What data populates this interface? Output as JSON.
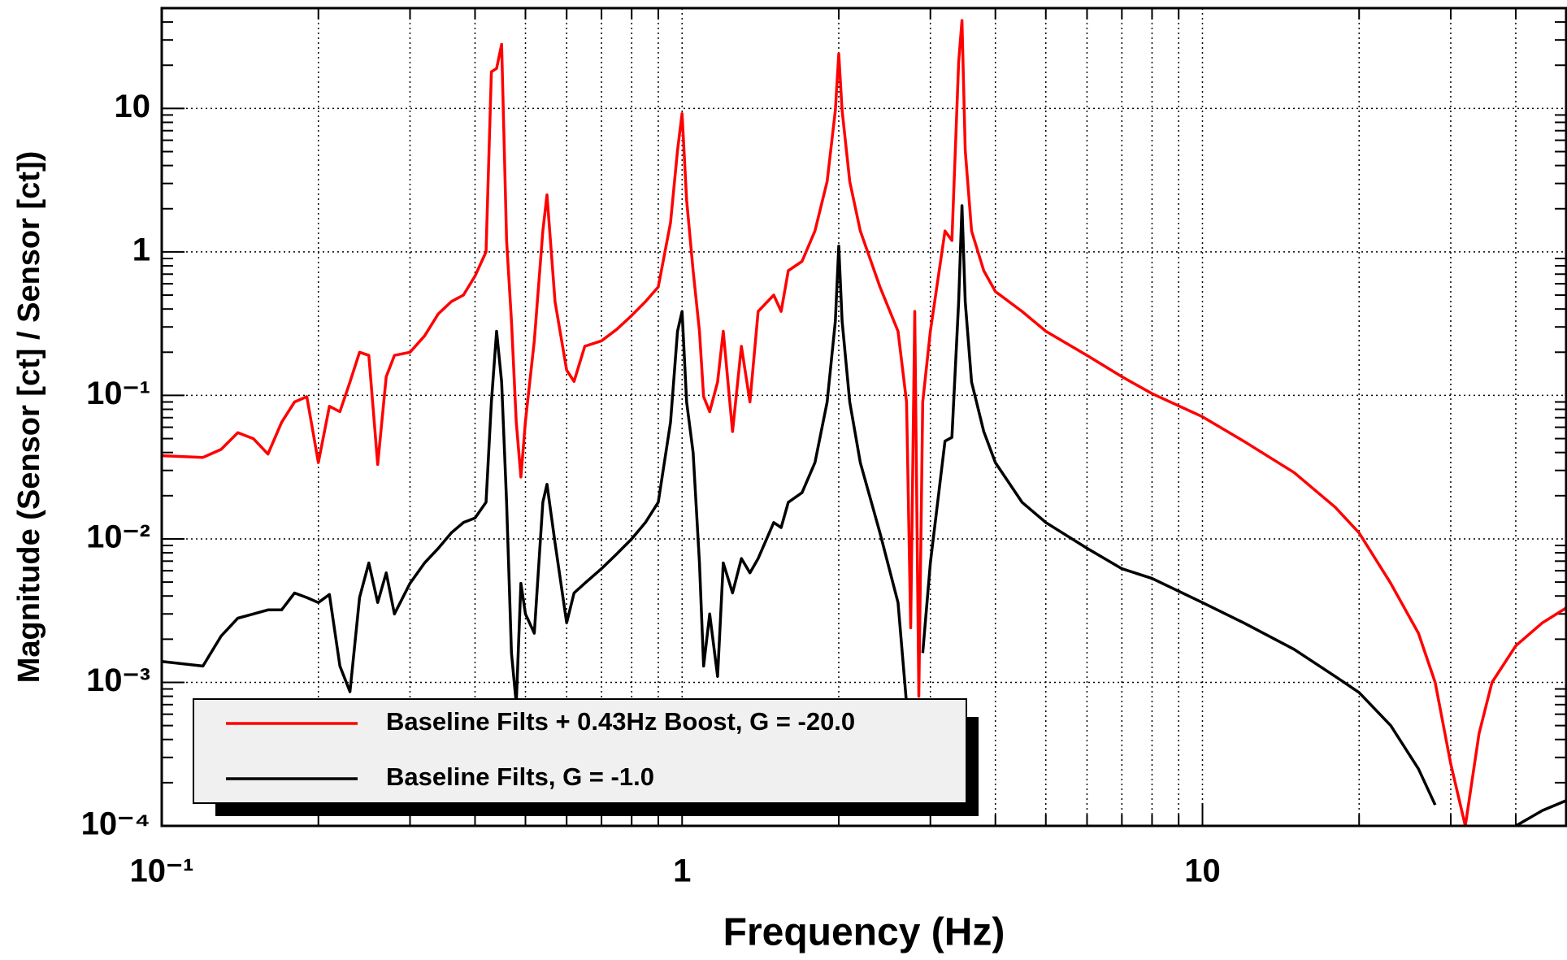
{
  "chart_data": {
    "type": "line",
    "x_label": "Frequency (Hz)",
    "y_label": "Magnitude (Sensor [ct] / Sensor [ct])",
    "xlog": true,
    "ylog": true,
    "grid": true,
    "legend_corner": "lower left",
    "xlim": [
      0.1,
      50
    ],
    "ylim": [
      0.0001,
      50
    ],
    "xticks": [
      {
        "value": 0.1,
        "label": "10⁻¹"
      },
      1,
      10
    ],
    "yticks": [
      {
        "value": 0.0001,
        "label": "10⁻⁴"
      },
      {
        "value": 0.001,
        "label": "10⁻³"
      },
      {
        "value": 0.01,
        "label": "10⁻²"
      },
      {
        "value": 0.1,
        "label": "10⁻¹"
      },
      1,
      10
    ],
    "x": [
      0.1,
      0.12,
      0.13,
      0.14,
      0.15,
      0.16,
      0.17,
      0.18,
      0.19,
      0.2,
      0.21,
      0.22,
      0.23,
      0.24,
      0.25,
      0.26,
      0.27,
      0.28,
      0.3,
      0.32,
      0.34,
      0.36,
      0.38,
      0.4,
      0.42,
      0.43,
      0.44,
      0.45,
      0.46,
      0.47,
      0.48,
      0.49,
      0.5,
      0.52,
      0.54,
      0.55,
      0.57,
      0.6,
      0.62,
      0.65,
      0.7,
      0.75,
      0.8,
      0.85,
      0.9,
      0.95,
      0.98,
      1.0,
      1.02,
      1.05,
      1.08,
      1.1,
      1.13,
      1.17,
      1.2,
      1.25,
      1.3,
      1.35,
      1.4,
      1.5,
      1.55,
      1.6,
      1.7,
      1.8,
      1.9,
      1.97,
      2.0,
      2.03,
      2.1,
      2.2,
      2.4,
      2.6,
      2.7,
      2.75,
      2.8,
      2.85,
      2.9,
      3.0,
      3.2,
      3.3,
      3.4,
      3.45,
      3.5,
      3.6,
      3.8,
      4.0,
      4.5,
      5,
      6,
      7,
      8,
      10,
      12,
      15,
      18,
      20,
      23,
      26,
      28,
      30,
      32,
      34,
      36,
      40,
      45,
      50
    ],
    "series": [
      {
        "name": "Baseline Filts + 0.43Hz Boost, G = -20.0",
        "color": "#ff0000",
        "values": [
          0.038,
          0.037,
          0.042,
          0.055,
          0.05,
          0.039,
          0.065,
          0.09,
          0.098,
          0.034,
          0.084,
          0.077,
          0.124,
          0.2,
          0.19,
          0.033,
          0.135,
          0.19,
          0.2,
          0.26,
          0.37,
          0.45,
          0.5,
          0.68,
          1.0,
          18,
          19,
          28,
          1.2,
          0.33,
          0.065,
          0.027,
          0.066,
          0.24,
          1.4,
          2.5,
          0.45,
          0.15,
          0.125,
          0.22,
          0.24,
          0.29,
          0.36,
          0.45,
          0.57,
          1.6,
          5.1,
          9.2,
          2.3,
          0.74,
          0.28,
          0.098,
          0.077,
          0.124,
          0.28,
          0.056,
          0.22,
          0.09,
          0.385,
          0.5,
          0.385,
          0.74,
          0.86,
          1.4,
          3.1,
          9.7,
          24,
          9.7,
          3.1,
          1.4,
          0.57,
          0.28,
          0.09,
          0.0024,
          0.385,
          0.0008,
          0.09,
          0.28,
          1.4,
          1.2,
          21,
          41,
          5.1,
          1.4,
          0.74,
          0.53,
          0.385,
          0.28,
          0.19,
          0.135,
          0.103,
          0.071,
          0.048,
          0.029,
          0.0166,
          0.011,
          0.0049,
          0.0022,
          0.001,
          0.00027,
          0.0001,
          0.00044,
          0.001,
          0.0018,
          0.0026,
          0.0033
        ]
      },
      {
        "name": "Baseline Filts, G = -1.0",
        "color": "#000000",
        "values": [
          0.0014,
          0.0013,
          0.0021,
          0.0028,
          0.003,
          0.0032,
          0.0032,
          0.0042,
          0.0039,
          0.0036,
          0.0041,
          0.0013,
          0.00086,
          0.0039,
          0.0068,
          0.0036,
          0.0058,
          0.003,
          0.0049,
          0.0068,
          0.0086,
          0.011,
          0.013,
          0.014,
          0.018,
          0.09,
          0.28,
          0.124,
          0.018,
          0.0016,
          0.00071,
          0.0049,
          0.003,
          0.0022,
          0.018,
          0.024,
          0.0094,
          0.0026,
          0.0042,
          0.0049,
          0.0062,
          0.0079,
          0.01,
          0.013,
          0.018,
          0.065,
          0.28,
          0.385,
          0.09,
          0.04,
          0.0068,
          0.0013,
          0.003,
          0.0011,
          0.0068,
          0.0042,
          0.0073,
          0.0058,
          0.0073,
          0.013,
          0.012,
          0.018,
          0.021,
          0.034,
          0.09,
          0.33,
          1.1,
          0.33,
          0.09,
          0.034,
          0.011,
          0.0036,
          0.00071,
          null,
          0.0018,
          null,
          0.0016,
          0.0068,
          0.048,
          0.051,
          0.45,
          2.1,
          0.45,
          0.124,
          0.056,
          0.034,
          0.018,
          0.013,
          0.0086,
          0.0062,
          0.0053,
          0.0036,
          0.0026,
          0.0017,
          0.0011,
          0.00085,
          0.0005,
          0.00025,
          0.00014,
          null,
          null,
          null,
          null,
          0.0001,
          0.000128,
          0.00015
        ]
      }
    ]
  }
}
